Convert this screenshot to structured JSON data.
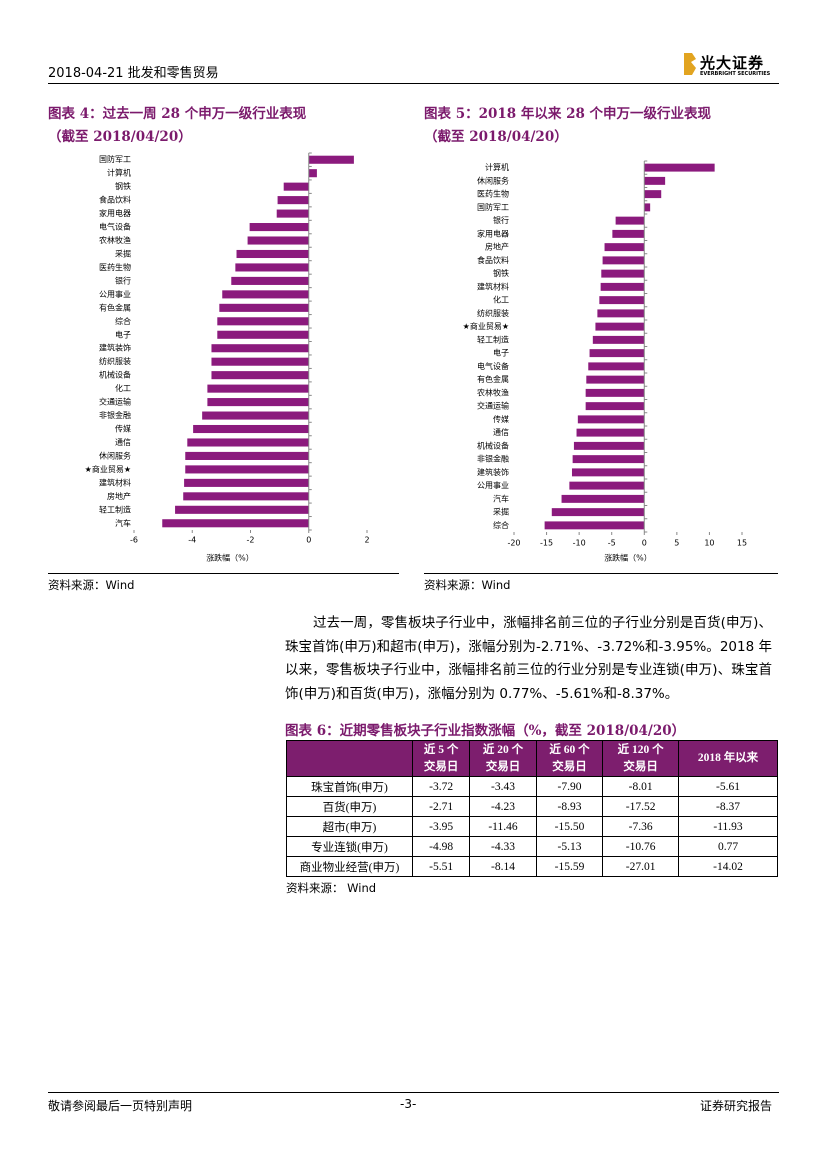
{
  "header": {
    "left": "2018-04-21   批发和零售贸易",
    "logo": "光大证券",
    "logo_sub": "EVERBRIGHT SECURITIES"
  },
  "chart_data": [
    {
      "type": "bar",
      "orientation": "horizontal",
      "title": "图表 4：过去一周 28 个申万一级行业表现",
      "subtitle": "（截至 2018/04/20）",
      "x_label": "涨跌幅（%）",
      "source": "资料来源：Wind",
      "color": "#8b1a7d",
      "categories": [
        "国防军工",
        "计算机",
        "钢铁",
        "食品饮料",
        "家用电器",
        "电气设备",
        "农林牧渔",
        "采掘",
        "医药生物",
        "银行",
        "公用事业",
        "有色金属",
        "综合",
        "电子",
        "建筑装饰",
        "纺织服装",
        "机械设备",
        "化工",
        "交通运输",
        "非银金融",
        "传媒",
        "通信",
        "休闲服务",
        "★商业贸易★",
        "建筑材料",
        "房地产",
        "轻工制造",
        "汽车"
      ],
      "values": [
        1.55,
        0.28,
        -0.86,
        -1.07,
        -1.1,
        -2.03,
        -2.1,
        -2.48,
        -2.52,
        -2.66,
        -2.97,
        -3.07,
        -3.14,
        -3.14,
        -3.34,
        -3.34,
        -3.34,
        -3.48,
        -3.48,
        -3.66,
        -3.97,
        -4.17,
        -4.24,
        -4.24,
        -4.28,
        -4.31,
        -4.59,
        -5.03
      ],
      "xlim": [
        -6,
        2
      ],
      "xticks": [
        -6,
        -4,
        -2,
        0,
        2
      ]
    },
    {
      "type": "bar",
      "orientation": "horizontal",
      "title": "图表 5：2018 年以来 28 个申万一级行业表现",
      "subtitle": "（截至 2018/04/20）",
      "x_label": "涨跌幅（%）",
      "source": "资料来源：Wind",
      "color": "#8b1a7d",
      "categories": [
        "计算机",
        "休闲服务",
        "医药生物",
        "国防军工",
        "银行",
        "家用电器",
        "房地产",
        "食品饮料",
        "钢铁",
        "建筑材料",
        "化工",
        "纺织服装",
        "★商业贸易★",
        "轻工制造",
        "电子",
        "电气设备",
        "有色金属",
        "农林牧渔",
        "交通运输",
        "传媒",
        "通信",
        "机械设备",
        "非银金融",
        "建筑装饰",
        "公用事业",
        "汽车",
        "采掘",
        "综合"
      ],
      "values": [
        10.8,
        3.2,
        2.6,
        0.9,
        -4.4,
        -4.9,
        -6.1,
        -6.4,
        -6.6,
        -6.7,
        -6.9,
        -7.2,
        -7.5,
        -7.9,
        -8.4,
        -8.6,
        -8.9,
        -9.0,
        -9.0,
        -10.2,
        -10.4,
        -10.8,
        -11.0,
        -11.1,
        -11.5,
        -12.7,
        -14.2,
        -15.3
      ],
      "xlim": [
        -20,
        15
      ],
      "xticks": [
        -20,
        -15,
        -10,
        -5,
        0,
        5,
        10,
        15
      ]
    }
  ],
  "paragraph": "过去一周，零售板块子行业中，涨幅排名前三位的子行业分别是百货(申万)、珠宝首饰(申万)和超市(申万)，涨幅分别为-2.71%、-3.72%和-3.95%。2018 年以来，零售板块子行业中，涨幅排名前三位的行业分别是专业连锁(申万)、珠宝首饰(申万)和百货(申万)，涨幅分别为 0.77%、-5.61%和-8.37%。",
  "table": {
    "title": "图表 6：近期零售板块子行业指数涨幅（%，截至 2018/04/20）",
    "columns": [
      "近 5 个\n交易日",
      "近 20 个\n交易日",
      "近 60 个\n交易日",
      "近 120 个\n交易日",
      "2018 年以来"
    ],
    "rows": [
      [
        "珠宝首饰(申万)",
        "-3.72",
        "-3.43",
        "-7.90",
        "-8.01",
        "-5.61"
      ],
      [
        "百货(申万)",
        "-2.71",
        "-4.23",
        "-8.93",
        "-17.52",
        "-8.37"
      ],
      [
        "超市(申万)",
        "-3.95",
        "-11.46",
        "-15.50",
        "-7.36",
        "-11.93"
      ],
      [
        "专业连锁(申万)",
        "-4.98",
        "-4.33",
        "-5.13",
        "-10.76",
        "0.77"
      ],
      [
        "商业物业经营(申万)",
        "-5.51",
        "-8.14",
        "-15.59",
        "-27.01",
        "-14.02"
      ]
    ],
    "source": "资料来源：  Wind"
  },
  "footer": {
    "left": "敬请参阅最后一页特别声明",
    "center": "-3-",
    "right": "证券研究报告"
  }
}
